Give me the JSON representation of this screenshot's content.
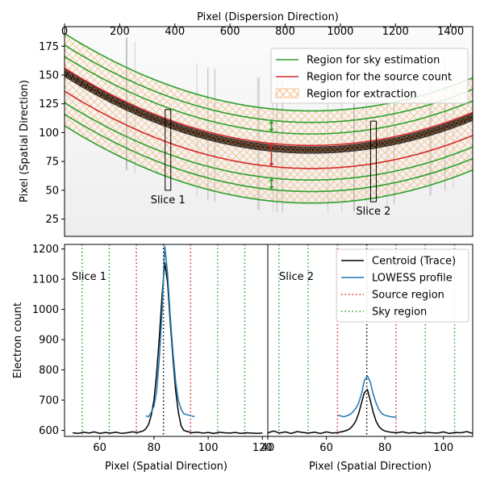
{
  "chart_data": [
    {
      "type": "image",
      "panel": "top",
      "xlabel": "Pixel (Dispersion Direction)",
      "ylabel": "Pixel (Spatial Direction)",
      "xlim": [
        0,
        1480
      ],
      "ylim": [
        10,
        192
      ],
      "xticks": [
        0,
        200,
        400,
        600,
        800,
        1000,
        1200,
        1400
      ],
      "yticks": [
        25,
        50,
        75,
        100,
        125,
        150,
        175
      ],
      "legend_position": "top-right",
      "legend": [
        {
          "label": "Region for sky estimation",
          "color": "#2ca02c",
          "style": "line"
        },
        {
          "label": "Region for the source count",
          "color": "#d62728",
          "style": "line"
        },
        {
          "label": "Region for extraction",
          "color": "#f5b97a",
          "style": "hatch"
        }
      ],
      "trace_quadratic": {
        "a": 8.38e-05,
        "b": -0.15,
        "c": 152
      },
      "trace_points": {
        "x": [
          0,
          100,
          200,
          300,
          400,
          500,
          600,
          700,
          800,
          900,
          1000,
          1100,
          1200,
          1300,
          1400,
          1480
        ],
        "y": [
          152,
          137.8,
          125.0,
          114.0,
          104.8,
          97.2,
          91.3,
          88.1,
          86.6,
          86.9,
          88.8,
          92.4,
          97.7,
          104.6,
          113.2,
          121.1
        ]
      },
      "offsets": {
        "sky": [
          -46,
          -36,
          -26,
          14,
          24,
          34
        ],
        "source": [
          -16,
          4
        ]
      },
      "slices": [
        {
          "label": "Slice 1",
          "x": 375,
          "ymin": 50,
          "ymax": 120
        },
        {
          "label": "Slice 2",
          "x": 1120,
          "ymin": 40,
          "ymax": 110
        }
      ]
    },
    {
      "type": "line",
      "panel": "bottom-left",
      "title_annotation": "Slice 1",
      "xlabel": "Pixel (Spatial Direction)",
      "ylabel": "Electron count",
      "xlim": [
        47,
        122
      ],
      "ylim": [
        580,
        1215
      ],
      "xticks": [
        60,
        80,
        100,
        120
      ],
      "yticks": [
        600,
        700,
        800,
        900,
        1000,
        1100,
        1200
      ],
      "centroid_line": 83.5,
      "source_lines": [
        73.5,
        93.5
      ],
      "sky_lines": [
        53.5,
        63.5,
        103.5,
        113.5
      ],
      "series": [
        {
          "name": "Centroid (Trace)",
          "color": "#000000",
          "x": [
            50,
            52,
            54,
            56,
            58,
            60,
            62,
            64,
            66,
            68,
            70,
            72,
            74,
            76,
            77,
            78,
            79,
            80,
            81,
            82,
            83,
            84,
            85,
            86,
            87,
            88,
            89,
            90,
            91,
            92,
            94,
            96,
            98,
            100,
            102,
            104,
            106,
            108,
            110,
            112,
            114,
            116,
            118,
            120
          ],
          "y": [
            592,
            590,
            594,
            591,
            595,
            590,
            593,
            591,
            594,
            590,
            592,
            595,
            593,
            598,
            605,
            620,
            650,
            700,
            790,
            910,
            1050,
            1155,
            1090,
            960,
            840,
            730,
            660,
            615,
            600,
            597,
            592,
            594,
            591,
            593,
            590,
            594,
            592,
            591,
            593,
            590,
            592,
            591,
            590,
            591
          ]
        },
        {
          "name": "LOWESS profile",
          "color": "#1f77b4",
          "x": [
            77,
            78,
            79,
            80,
            81,
            82,
            83,
            84,
            85,
            86,
            87,
            88,
            89,
            90,
            91,
            93,
            95
          ],
          "y": [
            648,
            645,
            660,
            680,
            730,
            840,
            1000,
            1210,
            1120,
            980,
            860,
            760,
            700,
            670,
            655,
            650,
            645
          ]
        }
      ]
    },
    {
      "type": "line",
      "panel": "bottom-right",
      "title_annotation": "Slice 2",
      "xlabel": "Pixel (Spatial Direction)",
      "xlim": [
        40,
        110
      ],
      "ylim": [
        580,
        1215
      ],
      "xticks": [
        40,
        60,
        80,
        100
      ],
      "centroid_line": 73.8,
      "source_lines": [
        63.8,
        83.8
      ],
      "sky_lines": [
        43.8,
        53.8,
        93.8,
        103.8
      ],
      "legend_position": "top-right",
      "legend": [
        {
          "label": "Centroid (Trace)",
          "color": "#000000",
          "style": "solid"
        },
        {
          "label": "LOWESS profile",
          "color": "#1f77b4",
          "style": "solid"
        },
        {
          "label": "Source region",
          "color": "#d62728",
          "style": "dotted"
        },
        {
          "label": "Sky region",
          "color": "#2ca02c",
          "style": "dotted"
        }
      ],
      "series": [
        {
          "name": "Centroid (Trace)",
          "color": "#000000",
          "x": [
            40,
            42,
            44,
            46,
            48,
            50,
            52,
            54,
            56,
            58,
            60,
            62,
            64,
            66,
            67,
            68,
            69,
            70,
            71,
            72,
            73,
            74,
            75,
            76,
            77,
            78,
            79,
            80,
            82,
            84,
            86,
            88,
            90,
            92,
            94,
            96,
            98,
            100,
            102,
            104,
            106,
            108,
            110
          ],
          "y": [
            592,
            598,
            591,
            595,
            590,
            596,
            593,
            591,
            594,
            590,
            595,
            591,
            593,
            597,
            600,
            605,
            615,
            630,
            655,
            690,
            725,
            735,
            700,
            660,
            630,
            612,
            603,
            598,
            594,
            592,
            595,
            591,
            593,
            590,
            594,
            592,
            591,
            595,
            590,
            593,
            592,
            596,
            590
          ]
        },
        {
          "name": "LOWESS profile",
          "color": "#1f77b4",
          "x": [
            64,
            66,
            67,
            68,
            69,
            70,
            71,
            72,
            73,
            74,
            75,
            76,
            77,
            78,
            79,
            80,
            82,
            84
          ],
          "y": [
            650,
            645,
            648,
            652,
            660,
            672,
            690,
            720,
            765,
            780,
            760,
            720,
            690,
            668,
            655,
            650,
            645,
            643
          ]
        }
      ]
    }
  ]
}
